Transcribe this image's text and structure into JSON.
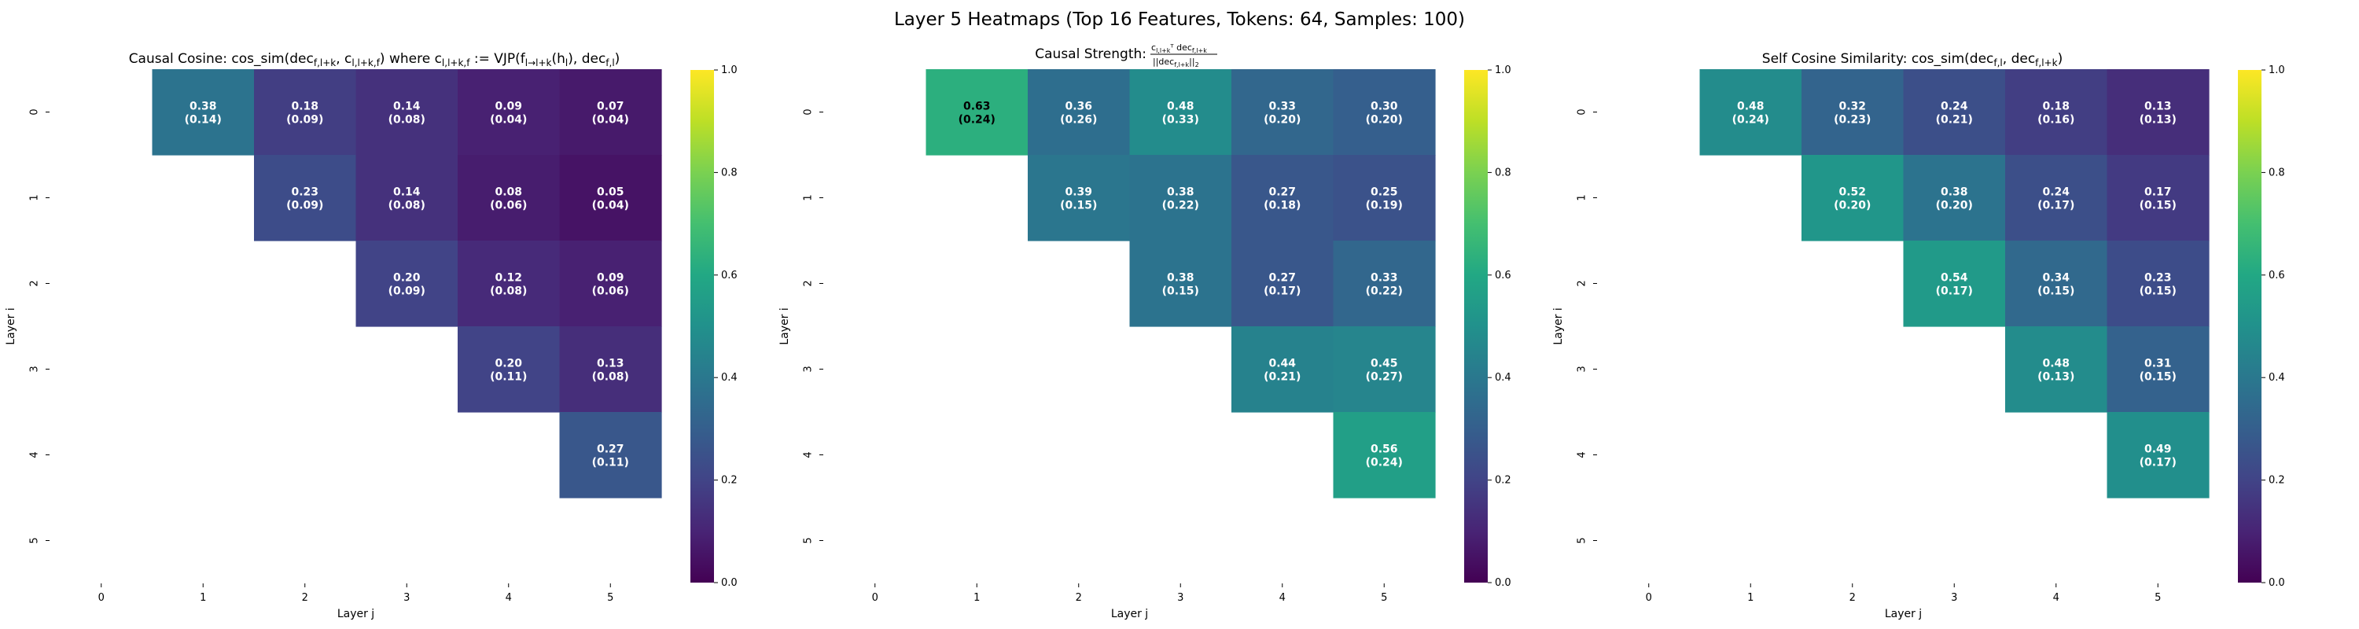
{
  "figure": {
    "suptitle": "Layer 5 Heatmaps (Top 16 Features, Tokens: 64, Samples: 100)"
  },
  "colorscale": {
    "name": "viridis",
    "vmin": 0.0,
    "vmax": 1.0,
    "ticks": [
      "0.0",
      "0.2",
      "0.4",
      "0.6",
      "0.8",
      "1.0"
    ]
  },
  "chart_data": [
    {
      "type": "heatmap",
      "title": "Causal Cosine: cos_sim(dec_{f,l+k}, c_{l,l+k,f}) where c_{l,l+k,f} := VJP(f_{l→l+k}(h_l), dec_{f,l})",
      "xlabel": "Layer j",
      "ylabel": "Layer i",
      "x_categories": [
        "0",
        "1",
        "2",
        "3",
        "4",
        "5"
      ],
      "y_categories": [
        "0",
        "1",
        "2",
        "3",
        "4",
        "5"
      ],
      "values": [
        [
          null,
          0.38,
          0.18,
          0.14,
          0.09,
          0.07
        ],
        [
          null,
          null,
          0.23,
          0.14,
          0.08,
          0.05
        ],
        [
          null,
          null,
          null,
          0.2,
          0.12,
          0.09
        ],
        [
          null,
          null,
          null,
          null,
          0.2,
          0.13
        ],
        [
          null,
          null,
          null,
          null,
          null,
          0.27
        ],
        [
          null,
          null,
          null,
          null,
          null,
          null
        ]
      ],
      "stds": [
        [
          null,
          0.14,
          0.09,
          0.08,
          0.04,
          0.04
        ],
        [
          null,
          null,
          0.09,
          0.08,
          0.06,
          0.04
        ],
        [
          null,
          null,
          null,
          0.09,
          0.08,
          0.06
        ],
        [
          null,
          null,
          null,
          null,
          0.11,
          0.08
        ],
        [
          null,
          null,
          null,
          null,
          null,
          0.11
        ],
        [
          null,
          null,
          null,
          null,
          null,
          null
        ]
      ],
      "colorbar_range": [
        0,
        1
      ]
    },
    {
      "type": "heatmap",
      "title": "Causal Strength: c_{l,l+k}^T dec_{f,l+k} / ||dec_{f,l+k}||_2",
      "xlabel": "Layer j",
      "ylabel": "Layer i",
      "x_categories": [
        "0",
        "1",
        "2",
        "3",
        "4",
        "5"
      ],
      "y_categories": [
        "0",
        "1",
        "2",
        "3",
        "4",
        "5"
      ],
      "values": [
        [
          null,
          0.63,
          0.36,
          0.48,
          0.33,
          0.3
        ],
        [
          null,
          null,
          0.39,
          0.38,
          0.27,
          0.25
        ],
        [
          null,
          null,
          null,
          0.38,
          0.27,
          0.33
        ],
        [
          null,
          null,
          null,
          null,
          0.44,
          0.45
        ],
        [
          null,
          null,
          null,
          null,
          null,
          0.56
        ],
        [
          null,
          null,
          null,
          null,
          null,
          null
        ]
      ],
      "stds": [
        [
          null,
          0.24,
          0.26,
          0.33,
          0.2,
          0.2
        ],
        [
          null,
          null,
          0.15,
          0.22,
          0.18,
          0.19
        ],
        [
          null,
          null,
          null,
          0.15,
          0.17,
          0.22
        ],
        [
          null,
          null,
          null,
          null,
          0.21,
          0.27
        ],
        [
          null,
          null,
          null,
          null,
          null,
          0.24
        ],
        [
          null,
          null,
          null,
          null,
          null,
          null
        ]
      ],
      "colorbar_range": [
        0,
        1
      ]
    },
    {
      "type": "heatmap",
      "title": "Self Cosine Similarity: cos_sim(dec_{f,l}, dec_{f,l+k})",
      "xlabel": "Layer j",
      "ylabel": "Layer i",
      "x_categories": [
        "0",
        "1",
        "2",
        "3",
        "4",
        "5"
      ],
      "y_categories": [
        "0",
        "1",
        "2",
        "3",
        "4",
        "5"
      ],
      "values": [
        [
          null,
          0.48,
          0.32,
          0.24,
          0.18,
          0.13
        ],
        [
          null,
          null,
          0.52,
          0.38,
          0.24,
          0.17
        ],
        [
          null,
          null,
          null,
          0.54,
          0.34,
          0.23
        ],
        [
          null,
          null,
          null,
          null,
          0.48,
          0.31
        ],
        [
          null,
          null,
          null,
          null,
          null,
          0.49
        ],
        [
          null,
          null,
          null,
          null,
          null,
          null
        ]
      ],
      "stds": [
        [
          null,
          0.24,
          0.23,
          0.21,
          0.16,
          0.13
        ],
        [
          null,
          null,
          0.2,
          0.2,
          0.17,
          0.15
        ],
        [
          null,
          null,
          null,
          0.17,
          0.15,
          0.15
        ],
        [
          null,
          null,
          null,
          null,
          0.13,
          0.15
        ],
        [
          null,
          null,
          null,
          null,
          null,
          0.17
        ],
        [
          null,
          null,
          null,
          null,
          null,
          null
        ]
      ],
      "colorbar_range": [
        0,
        1
      ]
    }
  ]
}
